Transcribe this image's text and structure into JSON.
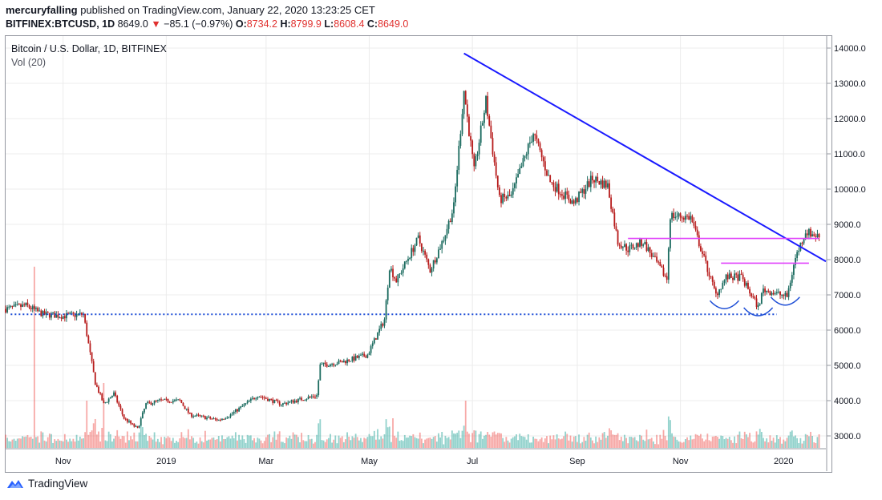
{
  "header": {
    "author": "mercuryfalling",
    "published_text": "published on TradingView.com, January 22, 2020 13:23:25 CET",
    "symbol": "BITFINEX:BTCUSD, 1D",
    "last": "8649.0",
    "change_arrow": "▼",
    "change": "−85.1 (−0.97%)",
    "o_label": "O:",
    "o": "8734.2",
    "h_label": "H:",
    "h": "8799.9",
    "l_label": "L:",
    "l": "8608.4",
    "c_label": "C:",
    "c": "8649.0"
  },
  "legend": {
    "series_title": "Bitcoin / U.S. Dollar, 1D, BITFINEX",
    "volume_title": "Vol (20)"
  },
  "footer": {
    "brand": "TradingView"
  },
  "colors": {
    "up": "#26a69a",
    "down": "#ef5350",
    "candle_down": "#b71c1c",
    "candle_up": "#1b6b5f",
    "trend": "#1a1aff",
    "level": "#e040fb",
    "support": "#1f4fd6",
    "grid": "#ececec"
  },
  "chart_data": {
    "type": "candlestick",
    "title": "Bitcoin / U.S. Dollar, 1D, BITFINEX",
    "y_ticks": [
      "14000.0",
      "13000.0",
      "12000.0",
      "11000.0",
      "10000.0",
      "9000.0",
      "8000.0",
      "7000.0",
      "6000.0",
      "5000.0",
      "4000.0",
      "3000.0"
    ],
    "x_ticks": [
      "Nov",
      "2019",
      "Mar",
      "May",
      "Jul",
      "Sep",
      "Nov",
      "2020"
    ],
    "ylim": [
      2600,
      14100
    ],
    "xlim": [
      "2018-09-28",
      "2020-01-26"
    ],
    "x_tick_dates": [
      "2018-11-01",
      "2019-01-01",
      "2019-03-01",
      "2019-05-01",
      "2019-07-01",
      "2019-09-01",
      "2019-11-01",
      "2020-01-01"
    ],
    "price_path": [
      [
        "2018-09-28",
        6600
      ],
      [
        "2018-10-10",
        6700
      ],
      [
        "2018-10-20",
        6450
      ],
      [
        "2018-11-01",
        6400
      ],
      [
        "2018-11-13",
        6450
      ],
      [
        "2018-11-16",
        5600
      ],
      [
        "2018-11-20",
        4500
      ],
      [
        "2018-11-25",
        3900
      ],
      [
        "2018-12-01",
        4200
      ],
      [
        "2018-12-07",
        3500
      ],
      [
        "2018-12-15",
        3200
      ],
      [
        "2018-12-20",
        3900
      ],
      [
        "2018-12-28",
        4000
      ],
      [
        "2019-01-09",
        4000
      ],
      [
        "2019-01-15",
        3600
      ],
      [
        "2019-02-01",
        3450
      ],
      [
        "2019-02-08",
        3600
      ],
      [
        "2019-02-24",
        4150
      ],
      [
        "2019-03-10",
        3900
      ],
      [
        "2019-03-31",
        4150
      ],
      [
        "2019-04-02",
        5000
      ],
      [
        "2019-04-15",
        5100
      ],
      [
        "2019-04-30",
        5300
      ],
      [
        "2019-05-10",
        6300
      ],
      [
        "2019-05-13",
        7800
      ],
      [
        "2019-05-17",
        7400
      ],
      [
        "2019-05-30",
        8600
      ],
      [
        "2019-06-06",
        7700
      ],
      [
        "2019-06-14",
        8600
      ],
      [
        "2019-06-20",
        9500
      ],
      [
        "2019-06-26",
        12800
      ],
      [
        "2019-07-02",
        10500
      ],
      [
        "2019-07-09",
        12500
      ],
      [
        "2019-07-17",
        9700
      ],
      [
        "2019-07-24",
        9800
      ],
      [
        "2019-08-06",
        11600
      ],
      [
        "2019-08-16",
        10200
      ],
      [
        "2019-08-30",
        9600
      ],
      [
        "2019-09-10",
        10300
      ],
      [
        "2019-09-19",
        10100
      ],
      [
        "2019-09-25",
        8500
      ],
      [
        "2019-10-01",
        8300
      ],
      [
        "2019-10-10",
        8500
      ],
      [
        "2019-10-24",
        7450
      ],
      [
        "2019-10-26",
        9250
      ],
      [
        "2019-11-07",
        9200
      ],
      [
        "2019-11-22",
        7000
      ],
      [
        "2019-11-28",
        7500
      ],
      [
        "2019-12-07",
        7500
      ],
      [
        "2019-12-17",
        6650
      ],
      [
        "2019-12-20",
        7150
      ],
      [
        "2020-01-03",
        6950
      ],
      [
        "2020-01-08",
        8050
      ],
      [
        "2020-01-14",
        8800
      ],
      [
        "2020-01-19",
        8700
      ],
      [
        "2020-01-22",
        8649
      ]
    ],
    "volume_spikes": [
      [
        "2018-10-15",
        7800
      ],
      [
        "2018-11-15",
        4000
      ],
      [
        "2018-11-25",
        4500
      ],
      [
        "2019-05-15",
        3500
      ],
      [
        "2019-06-27",
        4000
      ],
      [
        "2019-10-26",
        3450
      ],
      [
        "2019-12-18",
        3200
      ],
      [
        "2020-01-14",
        3050
      ]
    ],
    "annotations": {
      "trendline": [
        [
          "2019-06-26",
          13850
        ],
        [
          "2020-01-26",
          7950
        ]
      ],
      "support_level": {
        "from": "2018-10-01",
        "to": "2019-12-28",
        "price": 6450
      },
      "resistance_levels": [
        {
          "from": "2019-10-01",
          "to": "2020-01-22",
          "price": 8600
        },
        {
          "from": "2019-11-25",
          "to": "2020-01-16",
          "price": 7900
        }
      ],
      "arcs": [
        [
          "2019-11-27",
          6700
        ],
        [
          "2019-12-17",
          6500
        ],
        [
          "2020-01-02",
          6800
        ]
      ]
    }
  }
}
